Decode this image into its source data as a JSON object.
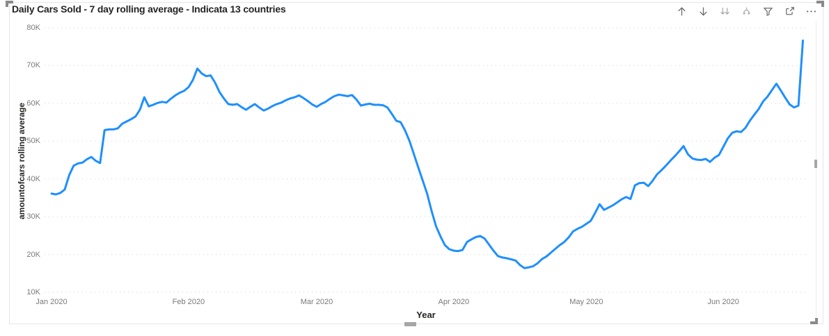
{
  "visual": {
    "title": "Daily Cars Sold - 7 day rolling average - Indicata 13 countries",
    "header": {
      "icons": [
        {
          "id": "drill-up",
          "label": "Drill up"
        },
        {
          "id": "drill-down",
          "label": "Drill down"
        },
        {
          "id": "go-to-next-level",
          "label": "Go to the next level in the hierarchy"
        },
        {
          "id": "expand-all",
          "label": "Expand all down one level in the hierarchy"
        },
        {
          "id": "filter",
          "label": "Filters"
        },
        {
          "id": "focus-mode",
          "label": "Focus mode"
        },
        {
          "id": "more-options",
          "label": "More options"
        }
      ]
    }
  },
  "colors": {
    "line": "#1e8fff",
    "grid": "#d2d2d2",
    "tick_label": "#797979",
    "axis_title": "#252423",
    "icon": "#6e6e6e",
    "icon_disabled": "#ababab",
    "border": "#e6e6e6",
    "handle": "#8a8a8a"
  },
  "chart_data": {
    "type": "line",
    "title": "Daily Cars Sold - 7 day rolling average - Indicata 13 countries",
    "xlabel": "Year",
    "ylabel": "amountofcars rolling average",
    "legend": "none",
    "grid": "horizontal dotted",
    "x_tick_labels": [
      "Jan 2020",
      "Feb 2020",
      "Mar 2020",
      "Apr 2020",
      "May 2020",
      "Jun 2020"
    ],
    "x_tick_days": [
      0,
      31,
      60,
      91,
      121,
      152
    ],
    "x_unit": "days since 1 Jan 2020",
    "y_tick_labels": [
      "80K",
      "70K",
      "60K",
      "50K",
      "40K",
      "30K",
      "20K",
      "10K"
    ],
    "ylim_thousands": [
      10,
      80
    ],
    "values_unit": "thousands of cars (K)",
    "series": [
      {
        "name": "7 day rolling average",
        "start_day": 0,
        "values_K": [
          36.1,
          35.9,
          36.3,
          37.2,
          41.0,
          43.5,
          44.1,
          44.3,
          45.2,
          45.8,
          44.8,
          44.2,
          52.9,
          53.1,
          53.1,
          53.4,
          54.6,
          55.2,
          55.8,
          56.5,
          58.3,
          61.6,
          59.2,
          59.6,
          60.1,
          60.4,
          60.2,
          61.2,
          62.1,
          62.8,
          63.3,
          64.3,
          66.2,
          69.2,
          67.9,
          67.2,
          67.4,
          65.5,
          63.0,
          61.3,
          59.8,
          59.6,
          59.8,
          59.0,
          58.3,
          59.1,
          59.8,
          58.9,
          58.1,
          58.6,
          59.3,
          59.8,
          60.2,
          60.8,
          61.3,
          61.6,
          62.1,
          61.4,
          60.6,
          59.7,
          59.1,
          59.8,
          60.4,
          61.2,
          61.9,
          62.3,
          62.1,
          61.9,
          62.2,
          61.0,
          59.4,
          59.7,
          59.9,
          59.6,
          59.6,
          59.5,
          58.9,
          57.2,
          55.4,
          55.0,
          52.8,
          50.0,
          46.5,
          43.0,
          39.5,
          36.0,
          31.5,
          27.5,
          24.8,
          22.5,
          21.4,
          21.0,
          20.9,
          21.2,
          23.3,
          24.0,
          24.6,
          24.9,
          24.2,
          22.6,
          21.0,
          19.6,
          19.2,
          19.0,
          18.7,
          18.4,
          17.2,
          16.4,
          16.6,
          16.9,
          17.7,
          18.8,
          19.5,
          20.5,
          21.5,
          22.5,
          23.3,
          24.5,
          26.1,
          26.8,
          27.3,
          28.1,
          28.9,
          31.0,
          33.3,
          31.8,
          32.4,
          33.0,
          33.8,
          34.6,
          35.2,
          34.7,
          38.3,
          38.9,
          39.0,
          38.1,
          39.5,
          41.2,
          42.3,
          43.5,
          44.8,
          46.0,
          47.3,
          48.7,
          46.5,
          45.4,
          45.1,
          45.0,
          45.3,
          44.5,
          45.6,
          46.3,
          48.5,
          50.7,
          52.2,
          52.6,
          52.4,
          53.5,
          55.4,
          57.0,
          58.5,
          60.5,
          61.8,
          63.5,
          65.2,
          63.4,
          61.5,
          59.7,
          58.9,
          59.4,
          76.6
        ]
      }
    ]
  }
}
